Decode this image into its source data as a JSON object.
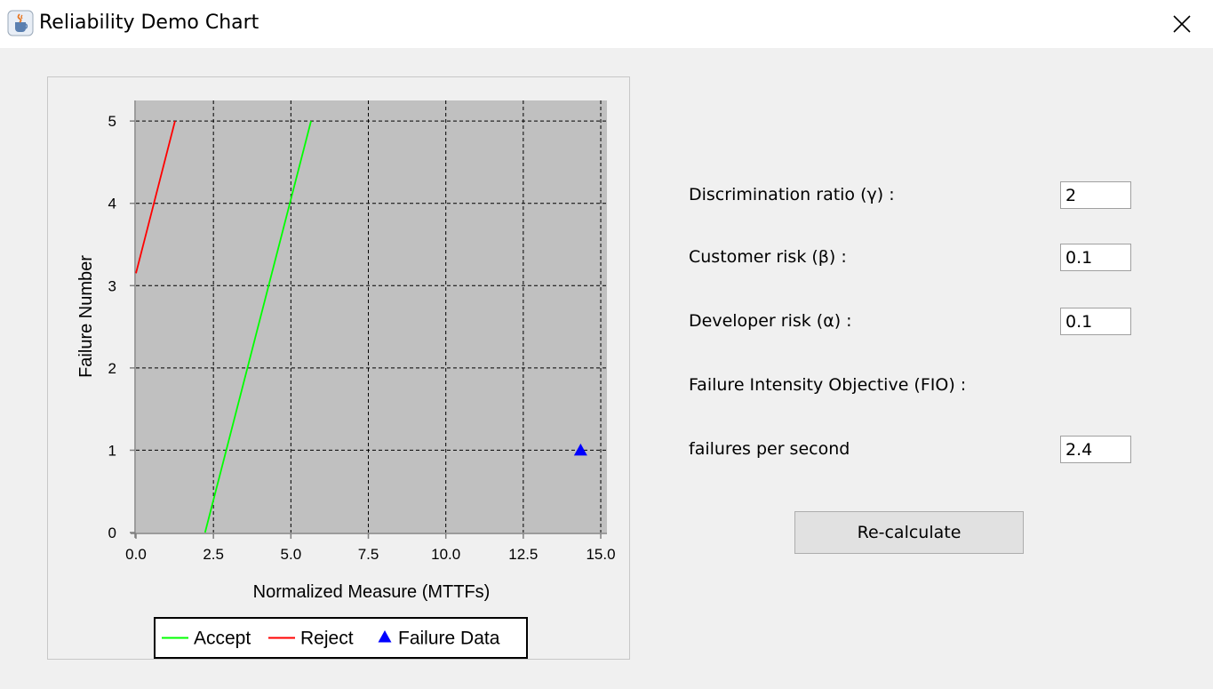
{
  "window": {
    "title": "Reliability Demo Chart"
  },
  "icons": {
    "app": "java-cup-icon",
    "close": "close-icon"
  },
  "form": {
    "discrimination_label": "Discrimination ratio (γ) :",
    "discrimination_value": "2",
    "customer_risk_label": "Customer risk (β) :",
    "customer_risk_value": "0.1",
    "developer_risk_label": "Developer risk (α) :",
    "developer_risk_value": "0.1",
    "fio_label": "Failure Intensity Objective (FIO) :",
    "fio_unit_label": "failures per second",
    "fio_value": "2.4",
    "recalc_label": "Re-calculate"
  },
  "colors": {
    "accept": "#00ff00",
    "reject": "#ff0000",
    "failure": "#0000ff",
    "plot_bg": "#c0c0c0"
  },
  "chart_data": {
    "type": "line",
    "title": "",
    "xlabel": "Normalized Measure (MTTFs)",
    "ylabel": "Failure Number",
    "xlim": [
      0,
      15.2
    ],
    "ylim": [
      0,
      5.25
    ],
    "xticks": [
      0,
      2.5,
      5,
      7.5,
      10,
      12.5,
      15
    ],
    "xtick_labels": [
      "0.0",
      "2.5",
      "5.0",
      "7.5",
      "10.0",
      "12.5",
      "15.0"
    ],
    "yticks": [
      0,
      1,
      2,
      3,
      4,
      5
    ],
    "ytick_labels": [
      "0",
      "1",
      "2",
      "3",
      "4",
      "5"
    ],
    "grid": true,
    "legend_position": "bottom",
    "series": [
      {
        "name": "Accept",
        "kind": "line",
        "color": "#00ff00",
        "points": [
          [
            2.23,
            0
          ],
          [
            5.65,
            5
          ]
        ]
      },
      {
        "name": "Reject",
        "kind": "line",
        "color": "#ff0000",
        "points": [
          [
            0,
            3.15
          ],
          [
            1.26,
            5
          ]
        ]
      },
      {
        "name": "Failure Data",
        "kind": "marker",
        "marker": "triangle",
        "color": "#0000ff",
        "points": [
          [
            14.35,
            1
          ]
        ]
      }
    ]
  }
}
